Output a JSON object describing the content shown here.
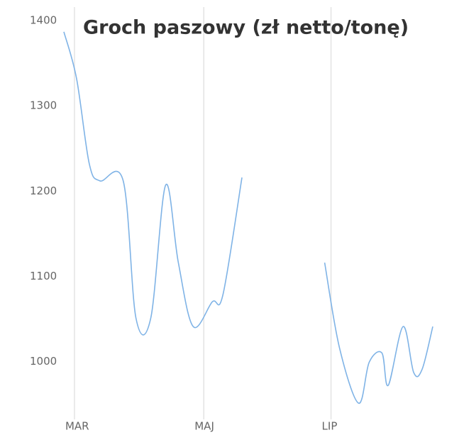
{
  "chart_data": {
    "type": "line",
    "title": "Groch paszowy (zł netto/tonę)",
    "x": [
      -5,
      1,
      7,
      12,
      23,
      29,
      36,
      43,
      49,
      56,
      65,
      70,
      79,
      98,
      118,
      125,
      134,
      139,
      145,
      148,
      155,
      160,
      164,
      169
    ],
    "series": [
      {
        "name": "Groch paszowy",
        "color": "#7fb3e6",
        "values": [
          1387,
          1332,
          1232,
          1212,
          1212,
          1051,
          1051,
          1207,
          1116,
          1041,
          1070,
          1078,
          1216,
          null,
          1116,
          1016,
          951,
          999,
          1010,
          972,
          1041,
          987,
          991,
          1041
        ]
      }
    ],
    "xlim": [
      -5,
      169
    ],
    "xticks": [
      {
        "value": 0,
        "label": "MAR"
      },
      {
        "value": 61,
        "label": "MAJ"
      },
      {
        "value": 121,
        "label": "LIP"
      }
    ],
    "ylim": [
      932,
      1416
    ],
    "yticks": [
      1000,
      1100,
      1200,
      1300,
      1400
    ],
    "grid": true
  }
}
